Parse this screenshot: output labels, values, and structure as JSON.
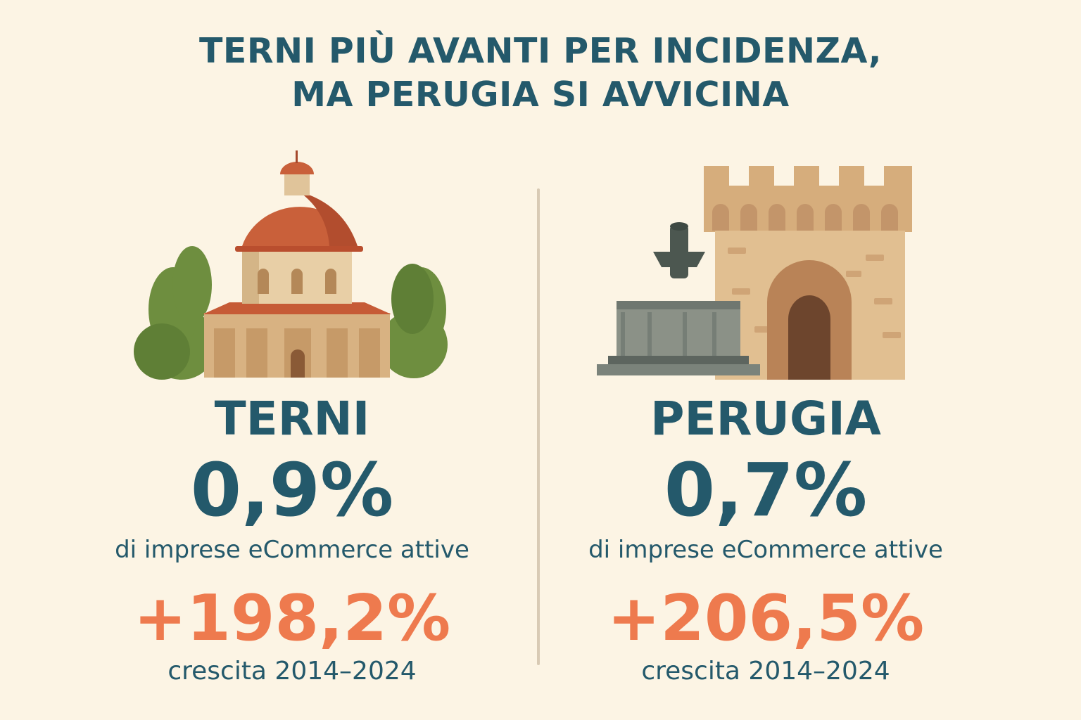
{
  "headline": {
    "line1": "TERNI PIÙ AVANTI PER INCIDENZA,",
    "line2": "MA PERUGIA SI AVVICINA"
  },
  "colors": {
    "background": "#fcf4e4",
    "primary_text": "#24596b",
    "accent": "#ee7a4e",
    "divider": "#d8cab4"
  },
  "cities": [
    {
      "name": "TERNI",
      "illustration": "domed-church-with-trees-icon",
      "share": "0,9%",
      "share_label": "di imprese eCommerce attive",
      "growth": "+198,2%",
      "growth_label": "crescita 2014–2024"
    },
    {
      "name": "PERUGIA",
      "illustration": "fountain-and-medieval-tower-icon",
      "share": "0,7%",
      "share_label": "di imprese eCommerce attive",
      "growth": "+206,5%",
      "growth_label": "crescita 2014–2024"
    }
  ]
}
